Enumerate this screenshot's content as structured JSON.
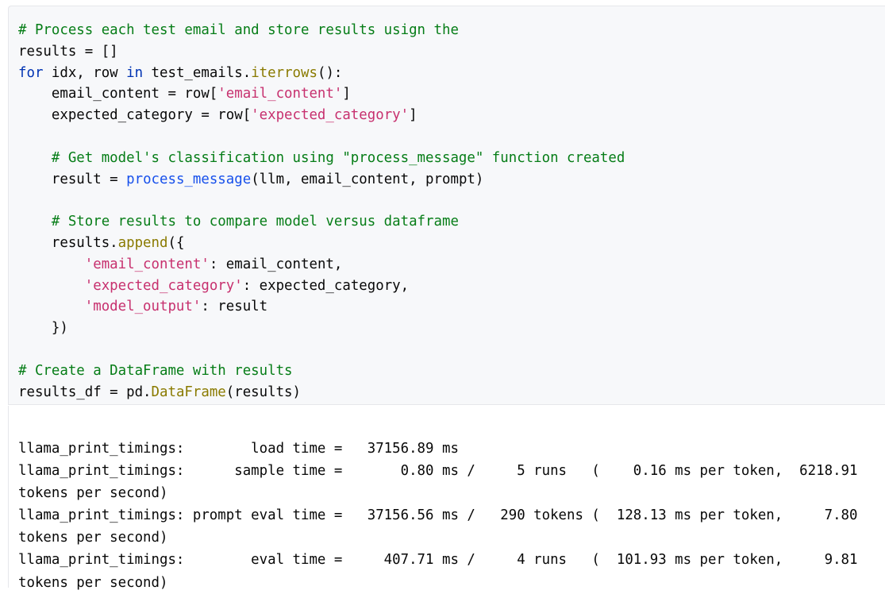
{
  "code_cell": {
    "lines": [
      [
        [
          "# Process each test email and store results usign the",
          "comment"
        ]
      ],
      [
        [
          "results = []",
          "plain"
        ]
      ],
      [
        [
          "for",
          "kw"
        ],
        [
          " idx, row ",
          "plain"
        ],
        [
          "in",
          "kw"
        ],
        [
          " test_emails.",
          "plain"
        ],
        [
          "iterrows",
          "method"
        ],
        [
          "():",
          "plain"
        ]
      ],
      [
        [
          "    email_content = row[",
          "plain"
        ],
        [
          "'email_content'",
          "str"
        ],
        [
          "]",
          "plain"
        ]
      ],
      [
        [
          "    expected_category = row[",
          "plain"
        ],
        [
          "'expected_category'",
          "str"
        ],
        [
          "]",
          "plain"
        ]
      ],
      [],
      [
        [
          "    # Get model's classification using \"process_message\" function created",
          "comment"
        ]
      ],
      [
        [
          "    result = ",
          "plain"
        ],
        [
          "process_message",
          "fn"
        ],
        [
          "(llm, email_content, prompt)",
          "plain"
        ]
      ],
      [],
      [
        [
          "    # Store results to compare model versus dataframe",
          "comment"
        ]
      ],
      [
        [
          "    results.",
          "plain"
        ],
        [
          "append",
          "method"
        ],
        [
          "({",
          "plain"
        ]
      ],
      [
        [
          "        ",
          "plain"
        ],
        [
          "'email_content'",
          "str"
        ],
        [
          ": email_content,",
          "plain"
        ]
      ],
      [
        [
          "        ",
          "plain"
        ],
        [
          "'expected_category'",
          "str"
        ],
        [
          ": expected_category,",
          "plain"
        ]
      ],
      [
        [
          "        ",
          "plain"
        ],
        [
          "'model_output'",
          "str"
        ],
        [
          ": result",
          "plain"
        ]
      ],
      [
        [
          "    })",
          "plain"
        ]
      ],
      [],
      [
        [
          "# Create a DataFrame with results",
          "comment"
        ]
      ],
      [
        [
          "results_df = pd.",
          "plain"
        ],
        [
          "DataFrame",
          "method"
        ],
        [
          "(results)",
          "plain"
        ]
      ]
    ]
  },
  "output": {
    "lines": [
      "llama_print_timings:        load time =   37156.89 ms",
      "llama_print_timings:      sample time =       0.80 ms /     5 runs   (    0.16 ms per token,  6218.91",
      "tokens per second)",
      "llama_print_timings: prompt eval time =   37156.56 ms /   290 tokens (  128.13 ms per token,     7.80",
      "tokens per second)",
      "llama_print_timings:        eval time =     407.71 ms /     4 runs   (  101.93 ms per token,     9.81",
      "tokens per second)"
    ]
  }
}
